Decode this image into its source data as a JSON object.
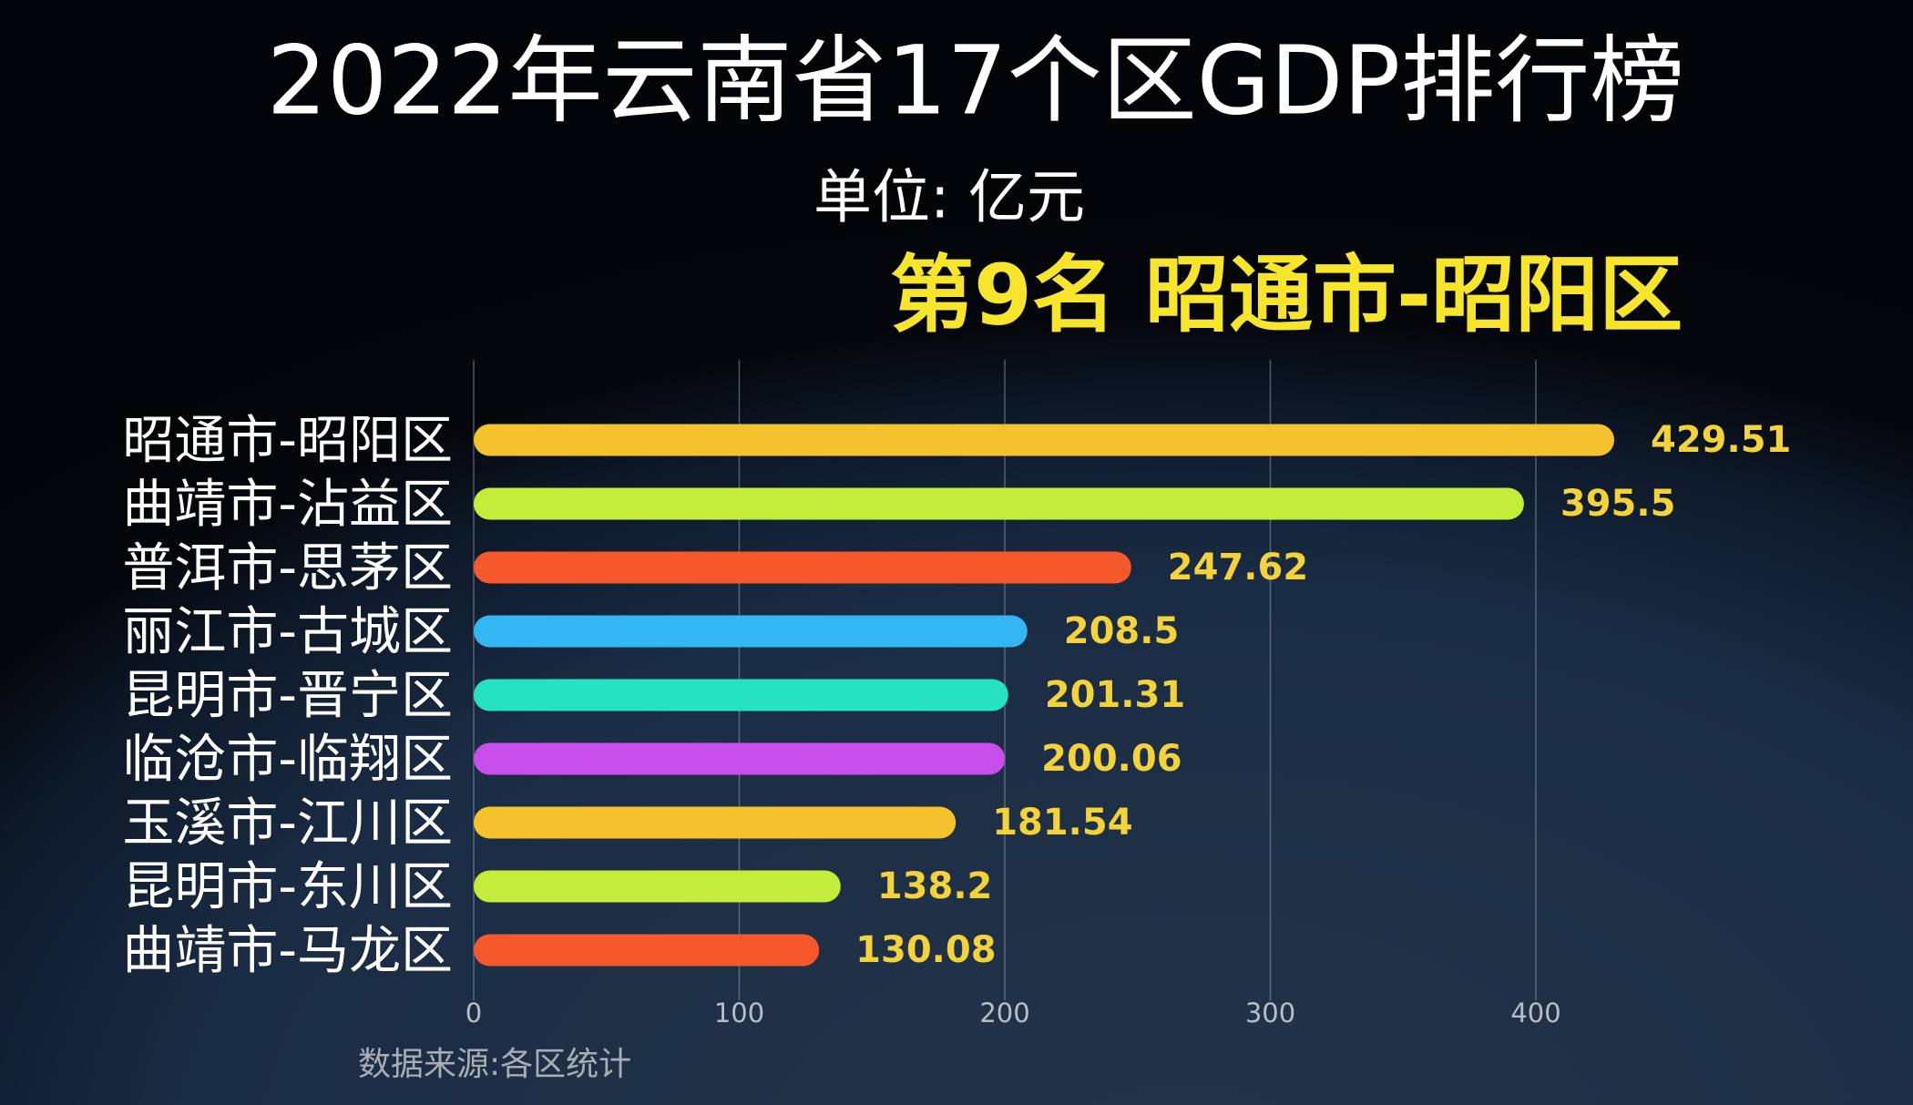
{
  "chart_data": {
    "type": "bar",
    "orientation": "horizontal",
    "title": "2022年云南省17个区GDP排行榜",
    "subtitle": "单位: 亿元",
    "annotation": "第9名 昭通市-昭阳区",
    "source": "数据来源:各区统计",
    "categories": [
      "昭通市-昭阳区",
      "曲靖市-沾益区",
      "普洱市-思茅区",
      "丽江市-古城区",
      "昆明市-晋宁区",
      "临沧市-临翔区",
      "玉溪市-江川区",
      "昆明市-东川区",
      "曲靖市-马龙区"
    ],
    "values": [
      429.51,
      395.5,
      247.62,
      208.5,
      201.31,
      200.06,
      181.54,
      138.2,
      130.08
    ],
    "colors": [
      "#f3c22d",
      "#c3ec3b",
      "#f5582b",
      "#34b6f2",
      "#25e2c2",
      "#c64ee9",
      "#f3c22d",
      "#c3ec3b",
      "#f5582b"
    ],
    "xlim": [
      0,
      450
    ],
    "xticks": [
      0,
      100,
      200,
      300,
      400
    ],
    "grid": true
  }
}
